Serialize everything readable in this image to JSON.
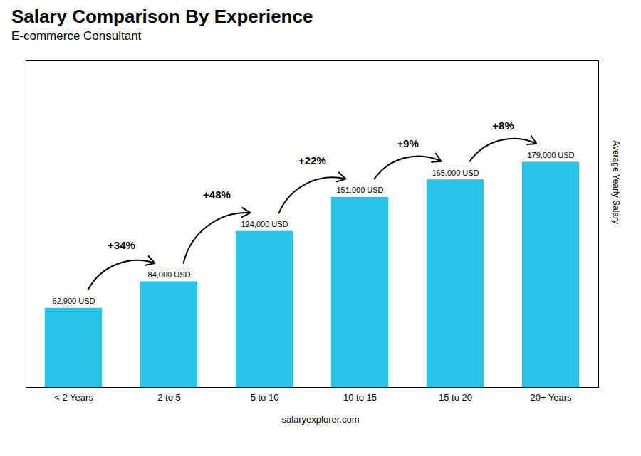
{
  "chart_data": {
    "type": "bar",
    "title": "Salary Comparison By Experience",
    "subtitle": "E-commerce Consultant",
    "categories": [
      "< 2 Years",
      "2 to 5",
      "5 to 10",
      "10 to 15",
      "15 to 20",
      "20+ Years"
    ],
    "values": [
      62900,
      84000,
      124000,
      151000,
      165000,
      179000
    ],
    "value_labels": [
      "62,900 USD",
      "84,000 USD",
      "124,000 USD",
      "151,000 USD",
      "165,000 USD",
      "179,000 USD"
    ],
    "data_labels": true,
    "color": "#29c5e8",
    "ylim": [
      0,
      259550
    ],
    "ylabel": "Average Yearly Salary",
    "tick_labels": "x",
    "grid": false,
    "annotations": [
      "+34%",
      "+48%",
      "+22%",
      "+9%",
      "+8%"
    ],
    "caption": "salaryexplorer.com"
  }
}
